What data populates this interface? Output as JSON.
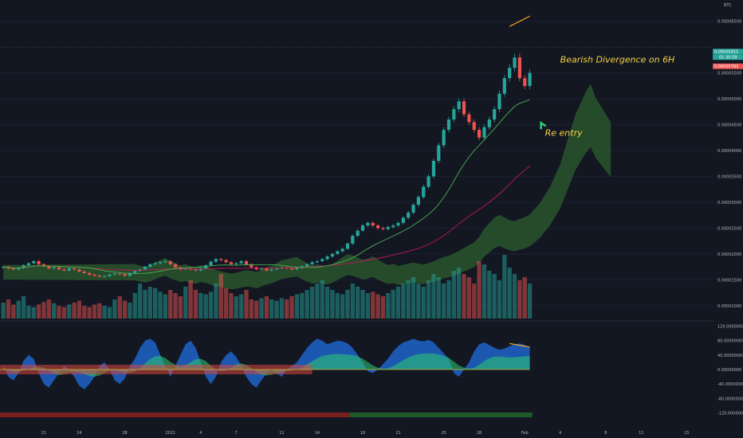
{
  "chart_data": {
    "type": "candlestick",
    "currency_label": "BTC",
    "price_axis": {
      "min": 7.5e-06,
      "max": 6.85e-05,
      "ticks": [
        {
          "value": 6.5e-05,
          "label": "0.00006500"
        },
        {
          "value": 5.5e-05,
          "label": "0.00005500"
        },
        {
          "value": 5e-05,
          "label": "0.00005000"
        },
        {
          "value": 4.5e-05,
          "label": "0.00004500"
        },
        {
          "value": 4e-05,
          "label": "0.00004000"
        },
        {
          "value": 3.5e-05,
          "label": "0.00003500"
        },
        {
          "value": 3e-05,
          "label": "0.00003000"
        },
        {
          "value": 2.5e-05,
          "label": "0.00002500"
        },
        {
          "value": 2e-05,
          "label": "0.00002000"
        },
        {
          "value": 1.5e-05,
          "label": "0.00001500"
        },
        {
          "value": 1e-05,
          "label": "0.00001000"
        }
      ],
      "last_price": {
        "value": 5.915e-05,
        "label": "0.00005915",
        "color": "#26a69a"
      },
      "countdown": {
        "label": "01:30:59",
        "color": "#26a69a"
      },
      "marker_price": {
        "value": 5.783e-05,
        "label": "0.00005783",
        "color": "#ef5350"
      },
      "high_line_value": 6e-05
    },
    "oscillator_axis": {
      "min": -130,
      "max": 130,
      "ticks": [
        {
          "value": 120,
          "label": "120.00000000"
        },
        {
          "value": 80,
          "label": "80.00000000"
        },
        {
          "value": 40,
          "label": "40.00000000"
        },
        {
          "value": 0,
          "label": "0.00000000"
        },
        {
          "value": -40,
          "label": "-40.00000000"
        },
        {
          "value": -80,
          "label": "-80.00000000"
        },
        {
          "value": -120,
          "label": "-120.00000000"
        }
      ]
    },
    "x_axis": {
      "bar_count": 105,
      "ticks": [
        {
          "label": "21",
          "bar": 8
        },
        {
          "label": "24",
          "bar": 15
        },
        {
          "label": "28",
          "bar": 24
        },
        {
          "label": "2021",
          "bar": 33
        },
        {
          "label": "4",
          "bar": 39
        },
        {
          "label": "7",
          "bar": 46
        },
        {
          "label": "11",
          "bar": 55
        },
        {
          "label": "14",
          "bar": 62
        },
        {
          "label": "18",
          "bar": 71
        },
        {
          "label": "21",
          "bar": 78
        },
        {
          "label": "25",
          "bar": 87
        },
        {
          "label": "28",
          "bar": 94
        },
        {
          "label": "Feb",
          "bar": 103
        },
        {
          "label": "4",
          "bar": 110
        },
        {
          "label": "8",
          "bar": 119
        },
        {
          "label": "11",
          "bar": 126
        },
        {
          "label": "15",
          "bar": 135
        }
      ]
    },
    "annotations": [
      {
        "text": "Bearish Divergence on 6H",
        "bar": 110,
        "price": 5.7e-05
      },
      {
        "text": "Re entry",
        "bar": 107,
        "price": 4.35e-05
      }
    ],
    "colors": {
      "up": "#26a69a",
      "down": "#ef5350",
      "cloud": "#2e5e2e",
      "annotation": "#f5d142",
      "divergence_line": "#f5a623",
      "ma": "#4caf50",
      "ma_slow": "#c2185b",
      "wave_blue": "#1e63c9",
      "wave_green": "#2ecc71",
      "wave_yellow": "#d4b82a",
      "wave_red": "#d8453e",
      "bias_bear": "#7a1f1f",
      "bias_bull": "#1f5a2a"
    },
    "closes": [
      1.75,
      1.72,
      1.7,
      1.73,
      1.78,
      1.82,
      1.86,
      1.8,
      1.76,
      1.72,
      1.74,
      1.7,
      1.68,
      1.72,
      1.7,
      1.66,
      1.63,
      1.6,
      1.58,
      1.56,
      1.57,
      1.6,
      1.62,
      1.61,
      1.58,
      1.63,
      1.67,
      1.7,
      1.75,
      1.8,
      1.82,
      1.84,
      1.86,
      1.8,
      1.74,
      1.7,
      1.72,
      1.7,
      1.68,
      1.72,
      1.78,
      1.85,
      1.9,
      1.88,
      1.84,
      1.8,
      1.82,
      1.86,
      1.8,
      1.74,
      1.7,
      1.72,
      1.68,
      1.7,
      1.72,
      1.74,
      1.72,
      1.7,
      1.73,
      1.76,
      1.8,
      1.84,
      1.86,
      1.9,
      1.95,
      2.0,
      2.05,
      2.1,
      2.2,
      2.35,
      2.45,
      2.55,
      2.6,
      2.55,
      2.5,
      2.48,
      2.52,
      2.55,
      2.6,
      2.7,
      2.8,
      2.95,
      3.1,
      3.3,
      3.5,
      3.8,
      4.1,
      4.4,
      4.6,
      4.8,
      4.95,
      4.7,
      4.55,
      4.4,
      4.25,
      4.45,
      4.6,
      4.8,
      5.1,
      5.4,
      5.6,
      5.8,
      5.4,
      5.25,
      5.5
    ],
    "volume": [
      0.25,
      0.3,
      0.22,
      0.28,
      0.35,
      0.2,
      0.18,
      0.22,
      0.26,
      0.3,
      0.24,
      0.2,
      0.18,
      0.22,
      0.25,
      0.28,
      0.2,
      0.18,
      0.22,
      0.24,
      0.2,
      0.18,
      0.3,
      0.35,
      0.28,
      0.25,
      0.4,
      0.55,
      0.45,
      0.5,
      0.48,
      0.42,
      0.38,
      0.45,
      0.4,
      0.35,
      0.5,
      0.6,
      0.45,
      0.4,
      0.38,
      0.42,
      0.55,
      0.7,
      0.48,
      0.4,
      0.35,
      0.38,
      0.45,
      0.3,
      0.28,
      0.32,
      0.35,
      0.3,
      0.28,
      0.32,
      0.3,
      0.35,
      0.38,
      0.4,
      0.45,
      0.5,
      0.55,
      0.6,
      0.5,
      0.45,
      0.4,
      0.38,
      0.45,
      0.55,
      0.5,
      0.45,
      0.4,
      0.42,
      0.38,
      0.35,
      0.4,
      0.45,
      0.5,
      0.55,
      0.6,
      0.65,
      0.55,
      0.5,
      0.6,
      0.7,
      0.65,
      0.55,
      0.6,
      0.75,
      0.8,
      0.7,
      0.65,
      0.55,
      0.9,
      0.85,
      0.75,
      0.7,
      0.6,
      1.0,
      0.8,
      0.7,
      0.6,
      0.65,
      0.55
    ],
    "oscillator": [
      10,
      -20,
      -30,
      -10,
      25,
      40,
      30,
      -10,
      -40,
      -50,
      -30,
      -10,
      10,
      0,
      -20,
      -45,
      -55,
      -40,
      -20,
      10,
      20,
      0,
      -30,
      -40,
      -25,
      10,
      30,
      60,
      80,
      85,
      75,
      40,
      10,
      -20,
      10,
      40,
      70,
      80,
      60,
      20,
      -20,
      -40,
      -20,
      20,
      40,
      50,
      35,
      10,
      -20,
      -40,
      -50,
      -30,
      -10,
      0,
      -10,
      -20,
      0,
      10,
      20,
      40,
      60,
      75,
      85,
      80,
      70,
      75,
      80,
      78,
      72,
      60,
      40,
      20,
      -5,
      -10,
      0,
      15,
      30,
      50,
      65,
      75,
      80,
      85,
      80,
      78,
      82,
      75,
      60,
      45,
      30,
      -10,
      -20,
      0,
      20,
      50,
      70,
      75,
      68,
      60,
      55,
      58,
      65,
      70,
      72,
      68,
      60
    ],
    "bias_split_bar": 69
  }
}
